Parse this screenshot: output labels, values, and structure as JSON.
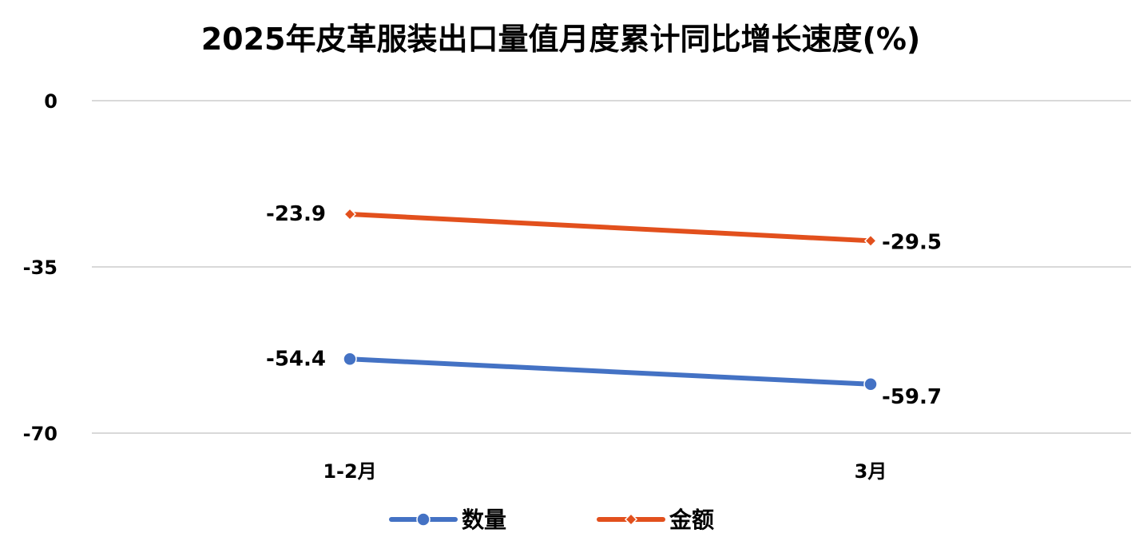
{
  "chart_data": {
    "type": "line",
    "title": "2025年皮革服装出口量值月度累计同比增长速度(%)",
    "categories": [
      "1-2月",
      "3月"
    ],
    "series": [
      {
        "name": "数量",
        "values": [
          -54.4,
          -59.7
        ],
        "labels": [
          "-54.4",
          "-59.7"
        ],
        "color": "#4472C4",
        "marker": "circle"
      },
      {
        "name": "金额",
        "values": [
          -23.9,
          -29.5
        ],
        "labels": [
          "-23.9",
          "-29.5"
        ],
        "color": "#E2501D",
        "marker": "diamond"
      }
    ],
    "yticks": [
      0,
      -35,
      -70
    ],
    "ytick_labels": [
      "0",
      "-35",
      "-70"
    ],
    "ylim": [
      -70,
      0
    ],
    "grid": true,
    "legend_position": "bottom"
  }
}
